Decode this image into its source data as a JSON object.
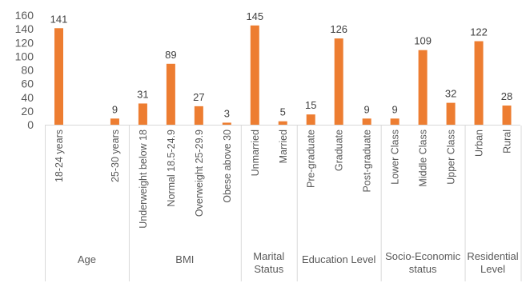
{
  "chart_data": {
    "type": "bar",
    "title": "",
    "xlabel": "",
    "ylabel": "",
    "ylim": [
      0,
      160
    ],
    "yticks": [
      0,
      20,
      40,
      60,
      80,
      100,
      120,
      140,
      160
    ],
    "grid": false,
    "legend": "none",
    "bar_color": "#ED7D31",
    "groups": [
      {
        "label_lines": [
          "Age"
        ],
        "categories": [
          "18-24 years",
          "",
          "25-30 years"
        ],
        "values": [
          141,
          null,
          9
        ]
      },
      {
        "label_lines": [
          "BMI"
        ],
        "categories": [
          "Underweight below 18",
          "Normal 18.5-24.9",
          "Overweight 25-29.9",
          "Obese above 30"
        ],
        "values": [
          31,
          89,
          27,
          3
        ]
      },
      {
        "label_lines": [
          "Marital",
          "Status"
        ],
        "categories": [
          "Unmarried",
          "Married"
        ],
        "values": [
          145,
          5
        ]
      },
      {
        "label_lines": [
          "Education Level"
        ],
        "categories": [
          "Pre-graduate",
          "Graduate",
          "Post-graduate"
        ],
        "values": [
          15,
          126,
          9
        ]
      },
      {
        "label_lines": [
          "Socio-Economic",
          "status"
        ],
        "categories": [
          "Lower Class",
          "Middle Class",
          "Upper Class"
        ],
        "values": [
          9,
          109,
          32
        ]
      },
      {
        "label_lines": [
          "Residential",
          "Level"
        ],
        "categories": [
          "Urban",
          "Rural"
        ],
        "values": [
          122,
          28
        ]
      }
    ]
  }
}
